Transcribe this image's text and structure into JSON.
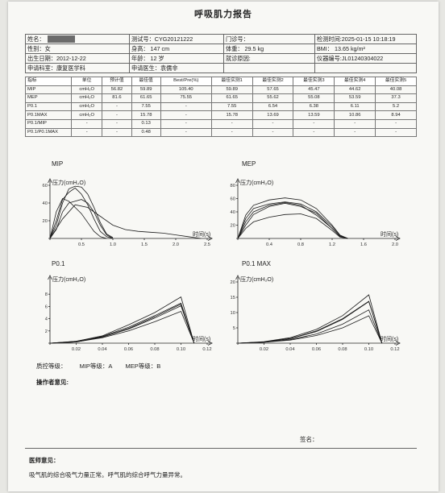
{
  "report": {
    "title": "呼吸肌力报告",
    "name_label": "姓名：",
    "test_no": "测试号：CYG20121222",
    "visit_no": "门诊号：",
    "test_time": "检测时间:2025-01-15 10:18:19",
    "gender": "性别：女",
    "height": "身高： 147 cm",
    "weight": "体重： 29.5 kg",
    "bmi": "BMI：  13.65 kg/m²",
    "birth": "出生日期：2012-12-22",
    "age": "年龄： 12 岁",
    "reason": "就诊原因:",
    "device": "仪器编号:JL01240304022",
    "dept": "申请科室：康复医学科",
    "doctor": "申请医生：袁儒非"
  },
  "results": {
    "headers": [
      "指标",
      "单位",
      "预计值",
      "最佳值",
      "Best/Pre(%)",
      "最佳实测1",
      "最佳实测2",
      "最佳实测3",
      "最佳实测4",
      "最佳实测5"
    ],
    "rows": [
      [
        "MIP",
        "cmH₂O",
        "56.82",
        "59.89",
        "105.40",
        "59.89",
        "57.65",
        "45.47",
        "44.62",
        "40.08"
      ],
      [
        "MEP",
        "cmH₂O",
        "81.6",
        "61.65",
        "75.55",
        "61.65",
        "55.62",
        "55.08",
        "53.59",
        "37.3"
      ],
      [
        "P0.1",
        "cmH₂O",
        "-",
        "7.55",
        "-",
        "7.55",
        "6.54",
        "6.38",
        "6.11",
        "5.2"
      ],
      [
        "P0.1MAX",
        "cmH₂O",
        "-",
        "15.78",
        "-",
        "15.78",
        "13.69",
        "13.59",
        "10.86",
        "8.94"
      ],
      [
        "P0.1/MIP",
        "-",
        "-",
        "0.13",
        "-",
        "-",
        "-",
        "-",
        "-",
        "-"
      ],
      [
        "P0.1/P0.1MAX",
        "-",
        "-",
        "0.48",
        "-",
        "-",
        "-",
        "-",
        "-",
        "-"
      ]
    ]
  },
  "charts": {
    "mip": {
      "title": "MIP",
      "ylabel": "压力(cmH₂O)",
      "xlabel": "时间(s)",
      "xticks": [
        "0.5",
        "1.0",
        "1.5",
        "2.0",
        "2.5"
      ],
      "yticks": [
        "20",
        "40",
        "60"
      ]
    },
    "mep": {
      "title": "MEP",
      "ylabel": "压力(cmH₂O)",
      "xlabel": "时间(s)",
      "xticks": [
        "0.4",
        "0.8",
        "1.2",
        "1.6",
        "2.0"
      ],
      "yticks": [
        "20",
        "40",
        "60",
        "80"
      ]
    },
    "p01": {
      "title": "P0.1",
      "ylabel": "压力(cmH₂O)",
      "xlabel": "时间(s)",
      "xticks": [
        "0.02",
        "0.04",
        "0.06",
        "0.08",
        "0.10",
        "0.12"
      ],
      "yticks": [
        "2",
        "4",
        "6",
        "8"
      ]
    },
    "p01max": {
      "title": "P0.1 MAX",
      "ylabel": "压力(cmH₂O)",
      "xlabel": "时间(s)",
      "xticks": [
        "0.02",
        "0.04",
        "0.06",
        "0.08",
        "0.10",
        "0.12"
      ],
      "yticks": [
        "5",
        "10",
        "15",
        "20"
      ]
    }
  },
  "chart_data": [
    {
      "type": "line",
      "title": "MIP",
      "xlabel": "时间(s)",
      "ylabel": "压力(cmH₂O)",
      "xlim": [
        0,
        2.5
      ],
      "ylim": [
        0,
        60
      ],
      "series": [
        {
          "x": [
            0,
            0.1,
            0.2,
            0.3,
            0.4,
            0.5,
            0.6,
            0.7,
            0.8,
            0.9,
            1.0
          ],
          "values": [
            0,
            15,
            40,
            56,
            59,
            58,
            50,
            35,
            18,
            5,
            1
          ]
        },
        {
          "x": [
            0,
            0.1,
            0.2,
            0.3,
            0.4,
            0.5,
            0.6,
            0.7,
            0.8,
            0.9,
            1.0
          ],
          "values": [
            0,
            20,
            44,
            52,
            57,
            50,
            38,
            22,
            8,
            2,
            0
          ]
        },
        {
          "x": [
            0,
            0.1,
            0.2,
            0.3,
            0.4,
            0.5,
            0.6,
            0.7,
            0.8,
            0.9
          ],
          "values": [
            0,
            30,
            45,
            42,
            35,
            28,
            18,
            8,
            2,
            0
          ]
        },
        {
          "x": [
            0,
            0.1,
            0.2,
            0.3,
            0.4,
            0.5,
            0.6,
            0.7,
            0.8,
            0.9,
            1.0
          ],
          "values": [
            0,
            10,
            30,
            40,
            42,
            44,
            40,
            30,
            15,
            4,
            0
          ]
        },
        {
          "x": [
            0,
            0.2,
            0.4,
            0.6,
            0.8,
            1.0,
            1.2,
            1.4,
            1.6,
            1.8,
            2.0,
            2.2,
            2.4
          ],
          "values": [
            0,
            22,
            38,
            35,
            25,
            15,
            10,
            8,
            7,
            6,
            4,
            2,
            0
          ]
        }
      ]
    },
    {
      "type": "line",
      "title": "MEP",
      "xlabel": "时间(s)",
      "ylabel": "压力(cmH₂O)",
      "xlim": [
        0,
        2.0
      ],
      "ylim": [
        0,
        80
      ],
      "series": [
        {
          "x": [
            0,
            0.1,
            0.2,
            0.4,
            0.6,
            0.8,
            1.0,
            1.2,
            1.3,
            1.4
          ],
          "values": [
            0,
            35,
            50,
            58,
            61,
            58,
            45,
            20,
            5,
            0
          ]
        },
        {
          "x": [
            0,
            0.1,
            0.2,
            0.4,
            0.6,
            0.8,
            1.0,
            1.2,
            1.3,
            1.4
          ],
          "values": [
            0,
            30,
            45,
            52,
            55,
            52,
            40,
            18,
            4,
            0
          ]
        },
        {
          "x": [
            0,
            0.1,
            0.2,
            0.4,
            0.6,
            0.8,
            1.0,
            1.2,
            1.3,
            1.4
          ],
          "values": [
            0,
            25,
            40,
            50,
            54,
            50,
            35,
            15,
            3,
            0
          ]
        },
        {
          "x": [
            0,
            0.1,
            0.2,
            0.4,
            0.6,
            0.8,
            1.0,
            1.2,
            1.3,
            1.4
          ],
          "values": [
            0,
            20,
            36,
            48,
            53,
            48,
            38,
            15,
            3,
            0
          ]
        },
        {
          "x": [
            0,
            0.1,
            0.2,
            0.4,
            0.6,
            0.8,
            1.0,
            1.2,
            1.3,
            1.4
          ],
          "values": [
            0,
            15,
            25,
            32,
            36,
            37,
            30,
            12,
            2,
            0
          ]
        }
      ]
    },
    {
      "type": "line",
      "title": "P0.1",
      "xlabel": "时间(s)",
      "ylabel": "压力(cmH₂O)",
      "xlim": [
        0,
        0.12
      ],
      "ylim": [
        0,
        10
      ],
      "series": [
        {
          "x": [
            0,
            0.02,
            0.04,
            0.06,
            0.08,
            0.1,
            0.11
          ],
          "values": [
            0,
            0.3,
            1.2,
            3,
            5,
            7.55,
            0
          ]
        },
        {
          "x": [
            0,
            0.02,
            0.04,
            0.06,
            0.08,
            0.1,
            0.11
          ],
          "values": [
            0,
            0.3,
            1.1,
            2.6,
            4.5,
            6.54,
            0
          ]
        },
        {
          "x": [
            0,
            0.02,
            0.04,
            0.06,
            0.08,
            0.1,
            0.11
          ],
          "values": [
            0,
            0.2,
            1.0,
            2.4,
            4.3,
            6.38,
            0
          ]
        },
        {
          "x": [
            0,
            0.02,
            0.04,
            0.06,
            0.08,
            0.1,
            0.11
          ],
          "values": [
            0,
            0.2,
            1.0,
            2.3,
            4.1,
            6.11,
            0
          ]
        },
        {
          "x": [
            0,
            0.02,
            0.04,
            0.06,
            0.08,
            0.1,
            0.11
          ],
          "values": [
            0,
            0.2,
            0.9,
            2.0,
            3.5,
            5.2,
            0
          ]
        }
      ]
    },
    {
      "type": "line",
      "title": "P0.1 MAX",
      "xlabel": "时间(s)",
      "ylabel": "压力(cmH₂O)",
      "xlim": [
        0,
        0.12
      ],
      "ylim": [
        0,
        20
      ],
      "series": [
        {
          "x": [
            0,
            0.02,
            0.04,
            0.06,
            0.08,
            0.1,
            0.11
          ],
          "values": [
            0,
            0.5,
            1.8,
            4.5,
            9,
            15.78,
            0
          ]
        },
        {
          "x": [
            0,
            0.02,
            0.04,
            0.06,
            0.08,
            0.1,
            0.11
          ],
          "values": [
            0,
            0.4,
            1.5,
            4,
            8,
            13.69,
            0
          ]
        },
        {
          "x": [
            0,
            0.02,
            0.04,
            0.06,
            0.08,
            0.1,
            0.11
          ],
          "values": [
            0,
            0.4,
            1.5,
            3.8,
            7.8,
            13.59,
            0
          ]
        },
        {
          "x": [
            0,
            0.02,
            0.04,
            0.06,
            0.08,
            0.1,
            0.11
          ],
          "values": [
            0,
            0.3,
            1.2,
            3,
            6.2,
            10.86,
            0
          ]
        },
        {
          "x": [
            0,
            0.02,
            0.04,
            0.06,
            0.08,
            0.1,
            0.11
          ],
          "values": [
            0,
            0.3,
            1,
            2.5,
            5,
            8.94,
            0
          ]
        }
      ]
    }
  ],
  "footer": {
    "qc_label": "质控等级：",
    "mip_grade": "MIP等级：A",
    "mep_grade": "MEP等级：B",
    "operator": "操作者意见:",
    "sign": "签名：",
    "doctor_opinion": "医师意见：",
    "opinion_text": "吸气肌的综合吸气力量正常。呼气肌的综合呼气力量异常。"
  }
}
